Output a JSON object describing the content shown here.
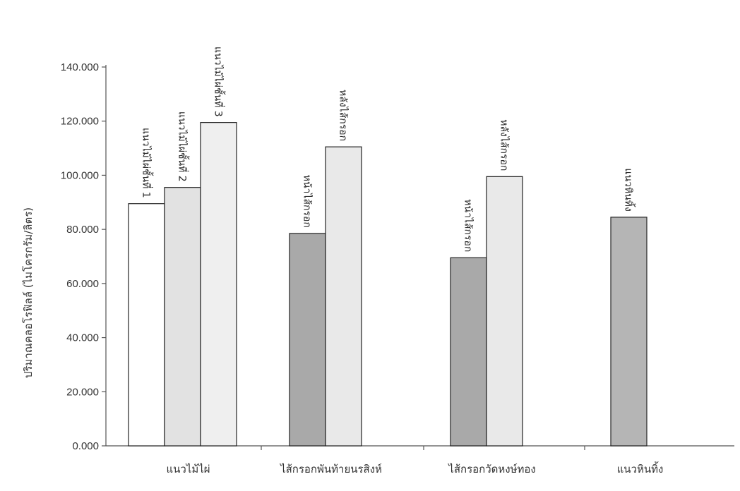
{
  "chart_data": {
    "type": "bar",
    "title": "",
    "xlabel": "",
    "ylabel": "ปริมาณคลอโรฟิลล์ (ไมโครกรัม/ลิตร)",
    "ylim": [
      0,
      140
    ],
    "yticks": [
      "0.000",
      "20.000",
      "40.000",
      "60.000",
      "80.000",
      "100.000",
      "120.000",
      "140.000"
    ],
    "grid": false,
    "legend": "none",
    "categories": [
      {
        "name": "แนวไม้ไผ่",
        "bars": [
          {
            "label": "แนวไม้ไผ่ชั้นที่ 1",
            "value": 89.5,
            "color": "#ffffff"
          },
          {
            "label": "แนวไม้ไผ่ชั้นที่ 2",
            "value": 95.5,
            "color": "#e2e2e2"
          },
          {
            "label": "แนวไม้ไผ่ชั้นที่ 3",
            "value": 119.5,
            "color": "#efefef"
          }
        ]
      },
      {
        "name": "ไส้กรอกพันท้ายนรสิงห์",
        "bars": [
          {
            "label": "หน้าไส้กรอก",
            "value": 78.5,
            "color": "#a9a9a9"
          },
          {
            "label": "หลังไส้กรอก",
            "value": 110.5,
            "color": "#e9e9e9"
          }
        ]
      },
      {
        "name": "ไส้กรอกวัดหงษ์ทอง",
        "bars": [
          {
            "label": "หน้าไส้กรอก",
            "value": 69.5,
            "color": "#a9a9a9"
          },
          {
            "label": "หลังไส้กรอก",
            "value": 99.5,
            "color": "#e9e9e9"
          }
        ]
      },
      {
        "name": "แนวหินทิ้ง",
        "bars": [
          {
            "label": "แนวหินทิ้ง",
            "value": 84.5,
            "color": "#b5b5b5"
          }
        ]
      }
    ]
  }
}
